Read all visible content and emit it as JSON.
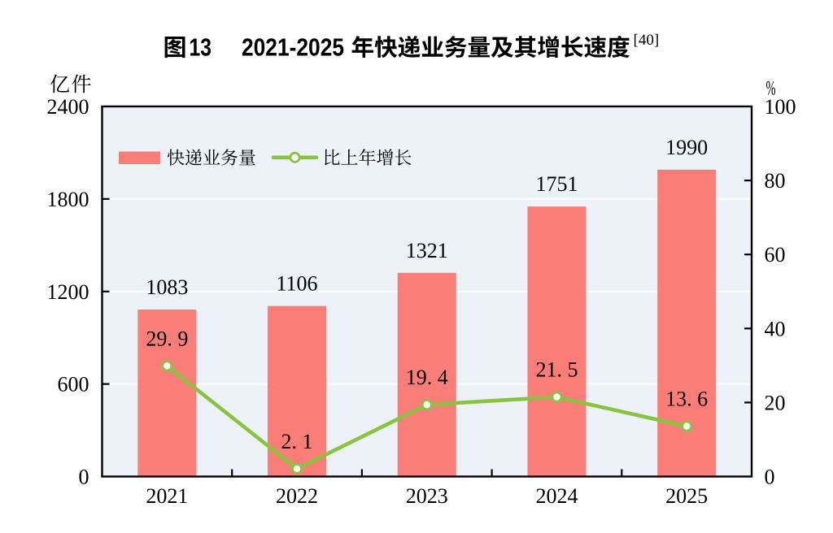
{
  "figure": {
    "title": {
      "fig_label": "图",
      "fig_number": "13",
      "year_range": "2021-2025",
      "title_rest": "年快递业务量及其增长速度",
      "full_text": "图 13  2021-2025 年快递业务量及其增长速度",
      "superscript": "[40]"
    },
    "axes": {
      "left": {
        "unit": "亿件",
        "ticks": [
          "0",
          "600",
          "1200",
          "1800",
          "2400"
        ]
      },
      "right": {
        "unit": "%",
        "ticks": [
          "0",
          "20",
          "40",
          "60",
          "80",
          "100"
        ]
      },
      "x": {
        "labels": [
          "2021",
          "2022",
          "2023",
          "2024",
          "2025"
        ]
      }
    },
    "legend": [
      {
        "label": "快递业务量",
        "swatch": "bar"
      },
      {
        "label": "比上年增长",
        "swatch": "line"
      }
    ]
  },
  "colors": {
    "bar": "#fb7d78",
    "line": "#88c440",
    "marker_fill": "#ffffff",
    "plot_background": "#ecf2f7",
    "gridline": "#ffffff",
    "axis": "#000000",
    "text": "#000000",
    "page_background": "#ffffff"
  },
  "chart_data": {
    "type": "bar+line combo",
    "title": "图 13  2021-2025 年快递业务量及其增长速度 [40]",
    "categories": [
      "2021",
      "2022",
      "2023",
      "2024",
      "2025"
    ],
    "series": [
      {
        "name": "快递业务量",
        "type": "bar",
        "axis": "left",
        "unit": "亿件",
        "values": [
          1083,
          1106,
          1321,
          1751,
          1990
        ],
        "labels": [
          "1083",
          "1106",
          "1321",
          "1751",
          "1990"
        ]
      },
      {
        "name": "比上年增长",
        "type": "line",
        "axis": "right",
        "unit": "%",
        "values": [
          29.9,
          2.1,
          19.4,
          21.5,
          13.6
        ],
        "labels": [
          "29. 9",
          "2. 1",
          "19. 4",
          "21. 5",
          "13. 6"
        ]
      }
    ],
    "left_axis": {
      "label": "亿件",
      "range": [
        0,
        2400
      ],
      "tick_step": 600
    },
    "right_axis": {
      "label": "%",
      "range": [
        0,
        100
      ],
      "tick_step": 20
    },
    "grid": "horizontal white gridlines at left-axis steps",
    "legend_position": "inside top-left"
  }
}
